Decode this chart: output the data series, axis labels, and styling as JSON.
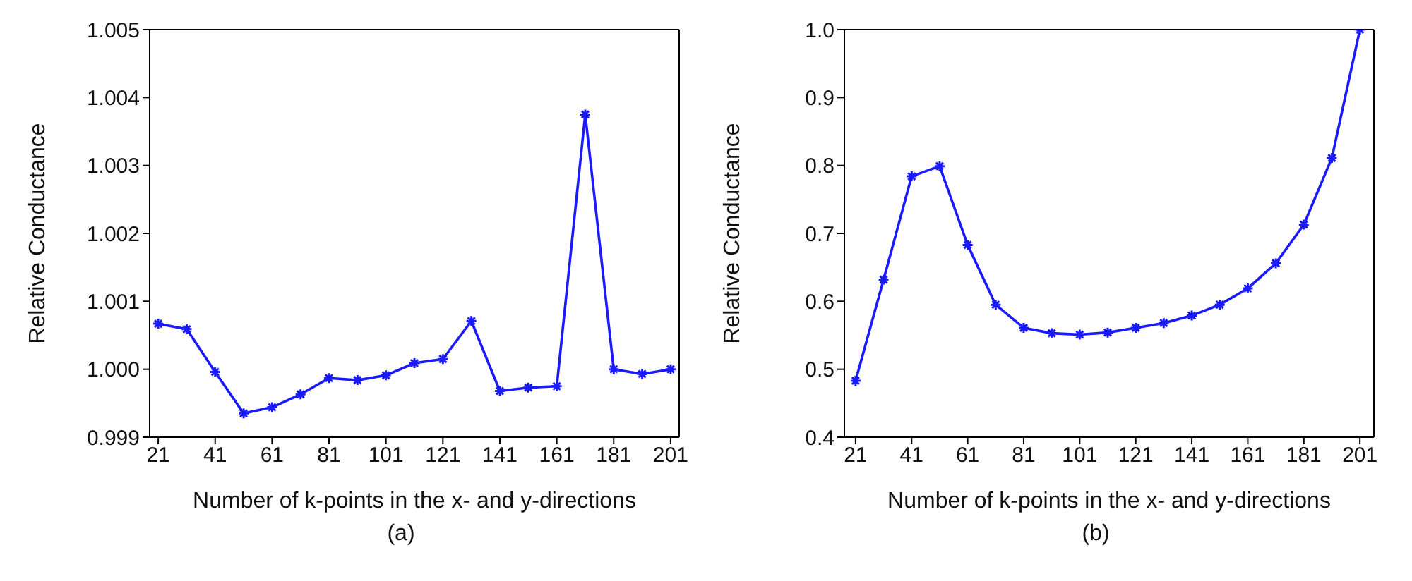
{
  "chart_data": [
    {
      "type": "line",
      "xlabel": "Number of k-points in the x- and y-directions",
      "ylabel": "Relative Conductance",
      "annotations": [
        "(a)"
      ],
      "x": [
        21,
        31,
        41,
        51,
        61,
        71,
        81,
        91,
        101,
        111,
        121,
        131,
        141,
        151,
        161,
        171,
        181,
        191,
        201
      ],
      "series": [
        {
          "color": "#1a1aff",
          "values": [
            1.00067,
            1.00059,
            0.99996,
            0.99935,
            0.99944,
            0.99963,
            0.99987,
            0.99984,
            0.99991,
            1.00009,
            1.00015,
            1.00071,
            0.99968,
            0.99973,
            0.99975,
            1.00375,
            1.0,
            0.99993,
            1.0
          ]
        }
      ],
      "xlim": [
        18,
        204
      ],
      "xticks": [
        21,
        41,
        61,
        81,
        101,
        121,
        141,
        161,
        181,
        201
      ],
      "ylim": [
        0.999,
        1.005
      ],
      "yticks": [
        {
          "value": 0.999,
          "label": "0.999"
        },
        {
          "value": 1.0,
          "label": "1.000"
        },
        {
          "value": 1.001,
          "label": "1.001"
        },
        {
          "value": 1.002,
          "label": "1.002"
        },
        {
          "value": 1.003,
          "label": "1.003"
        },
        {
          "value": 1.004,
          "label": "1.004"
        },
        {
          "value": 1.005,
          "label": "1.005"
        }
      ],
      "grid": false,
      "marker": "cross",
      "line_style": "solid"
    },
    {
      "type": "line",
      "xlabel": "Number of k-points in the x- and y-directions",
      "ylabel": "Relative Conductance",
      "annotations": [
        "(b)"
      ],
      "x": [
        21,
        31,
        41,
        51,
        61,
        71,
        81,
        91,
        101,
        111,
        121,
        131,
        141,
        151,
        161,
        171,
        181,
        191,
        201
      ],
      "series": [
        {
          "color": "#1a1aff",
          "values": [
            0.483,
            0.632,
            0.784,
            0.799,
            0.683,
            0.595,
            0.561,
            0.553,
            0.551,
            0.554,
            0.561,
            0.568,
            0.579,
            0.595,
            0.619,
            0.656,
            0.713,
            0.811,
            1.0
          ]
        }
      ],
      "xlim": [
        17,
        206
      ],
      "xticks": [
        21,
        41,
        61,
        81,
        101,
        121,
        141,
        161,
        181,
        201
      ],
      "ylim": [
        0.4,
        1.0
      ],
      "yticks": [
        {
          "value": 0.4,
          "label": "0.4"
        },
        {
          "value": 0.5,
          "label": "0.5"
        },
        {
          "value": 0.6,
          "label": "0.6"
        },
        {
          "value": 0.7,
          "label": "0.7"
        },
        {
          "value": 0.8,
          "label": "0.8"
        },
        {
          "value": 0.9,
          "label": "0.9"
        },
        {
          "value": 1.0,
          "label": "1.0"
        }
      ],
      "grid": false,
      "marker": "cross",
      "line_style": "solid"
    }
  ]
}
